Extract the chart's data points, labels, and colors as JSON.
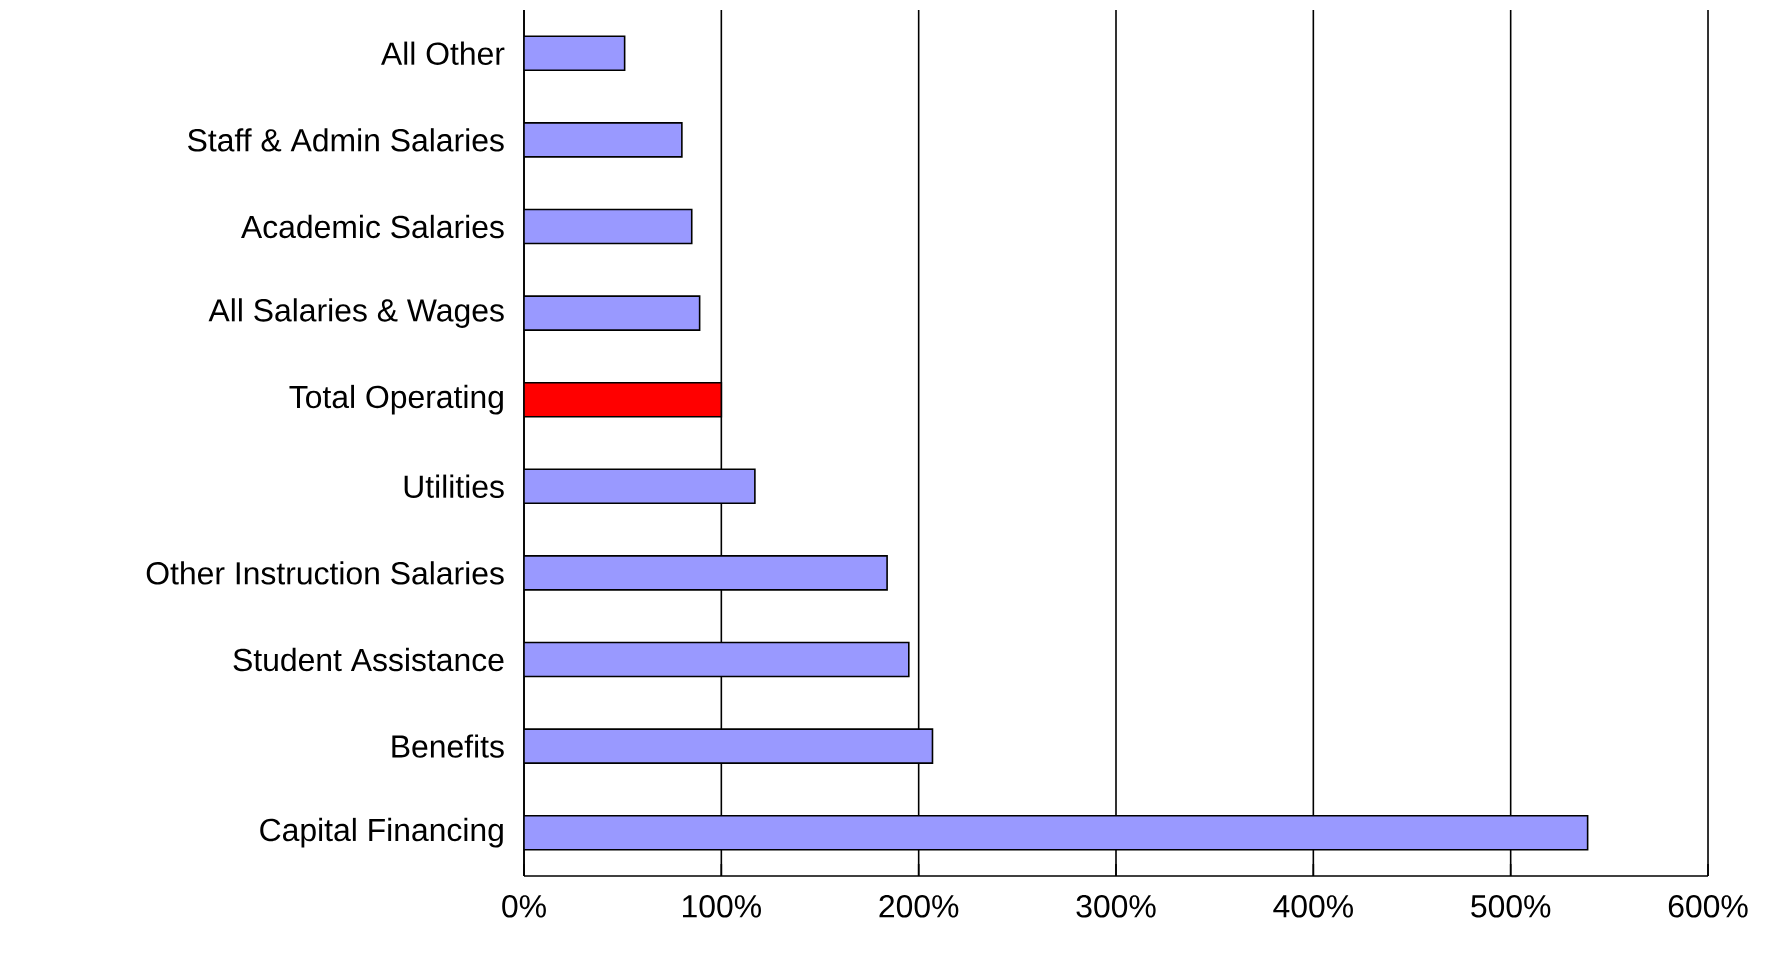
{
  "chart_data": {
    "type": "bar",
    "orientation": "horizontal",
    "categories": [
      "All Other",
      "Staff & Admin Salaries",
      "Academic Salaries",
      "All Salaries & Wages",
      "Total Operating",
      "Utilities",
      "Other Instruction Salaries",
      "Student Assistance",
      "Benefits",
      "Capital Financing"
    ],
    "values": [
      51,
      80,
      85,
      89,
      100,
      117,
      184,
      195,
      207,
      539
    ],
    "colors": [
      "#9999ff",
      "#9999ff",
      "#9999ff",
      "#9999ff",
      "#ff0000",
      "#9999ff",
      "#9999ff",
      "#9999ff",
      "#9999ff",
      "#9999ff"
    ],
    "xlim": [
      0,
      600
    ],
    "xticks": [
      {
        "value": 0,
        "label": "0%"
      },
      {
        "value": 100,
        "label": "100%"
      },
      {
        "value": 200,
        "label": "200%"
      },
      {
        "value": 300,
        "label": "300%"
      },
      {
        "value": 400,
        "label": "400%"
      },
      {
        "value": 500,
        "label": "500%"
      },
      {
        "value": 600,
        "label": "600%"
      }
    ],
    "grid": "x"
  }
}
